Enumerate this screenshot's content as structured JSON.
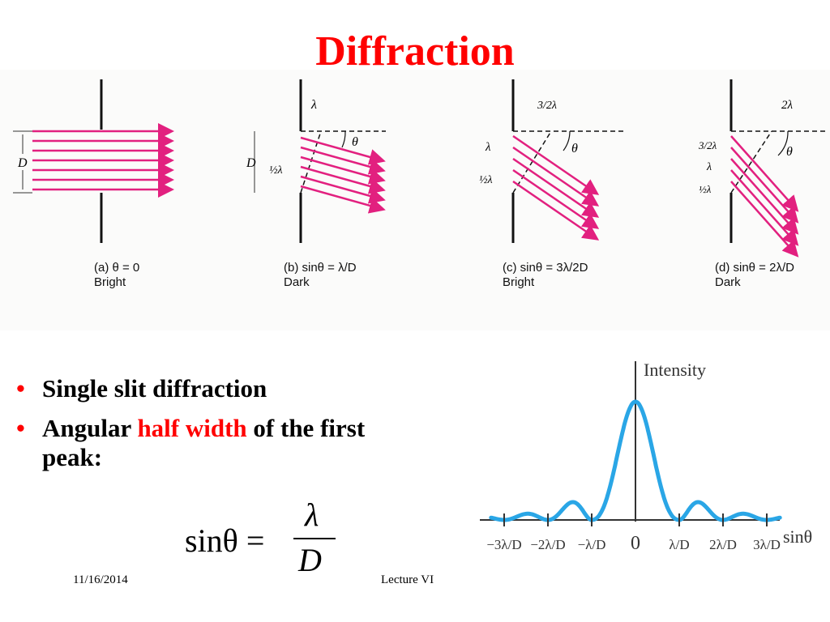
{
  "slide": {
    "title": "Diffraction",
    "date": "11/16/2014",
    "footer_label": "Lecture VI"
  },
  "panels": [
    {
      "id": "a",
      "caption_line1": "(a) θ = 0",
      "caption_line2": "Bright",
      "labels": {
        "D": "D"
      }
    },
    {
      "id": "b",
      "caption_line1": "(b) sinθ = λ/D",
      "caption_line2": "Dark",
      "labels": {
        "D": "D",
        "top": "λ",
        "mid": "½λ",
        "angle": "θ"
      }
    },
    {
      "id": "c",
      "caption_line1": "(c) sinθ = 3λ/2D",
      "caption_line2": "Bright",
      "labels": {
        "top": "3/2λ",
        "l1": "λ",
        "l2": "½λ",
        "angle": "θ"
      }
    },
    {
      "id": "d",
      "caption_line1": "(d) sinθ = 2λ/D",
      "caption_line2": "Dark",
      "labels": {
        "top": "2λ",
        "l1": "3/2λ",
        "l2": "λ",
        "l3": "½λ",
        "angle": "θ"
      }
    }
  ],
  "bullets": [
    {
      "parts": [
        {
          "text": "Single slit diffraction",
          "highlight": false
        }
      ]
    },
    {
      "parts": [
        {
          "text": "Angular ",
          "highlight": false
        },
        {
          "text": "half width",
          "highlight": true
        },
        {
          "text": " of the first peak:",
          "highlight": false
        }
      ]
    }
  ],
  "formula": {
    "lhs": "sinθ =",
    "numerator": "λ",
    "denominator": "D"
  },
  "chart_data": {
    "type": "line",
    "ylabel": "Intensity",
    "xlabel": "sinθ",
    "tick_labels": [
      "−3λ/D",
      "−2λ/D",
      "−λ/D",
      "0",
      "λ/D",
      "2λ/D",
      "3λ/D"
    ],
    "x": [
      -3,
      -2,
      -1,
      0,
      1,
      2,
      3
    ],
    "curve": "single-slit sinc² intensity, central max at 0, zeros at ±λ/D, ±2λ/D, ±3λ/D",
    "colors": {
      "curve": "#2aa6e6",
      "axis": "#333333"
    }
  },
  "colors": {
    "title": "#ff0000",
    "highlight": "#ff0000",
    "rays": "#e2207f"
  }
}
